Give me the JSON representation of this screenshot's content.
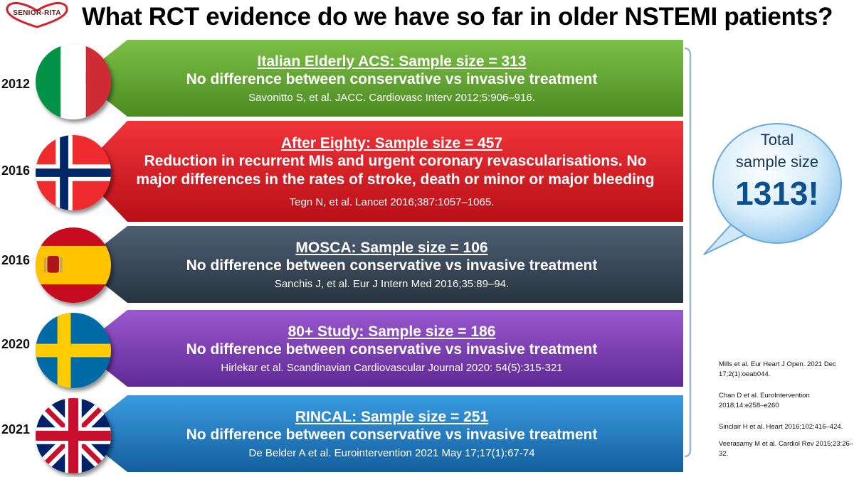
{
  "logo_text": "SENIOR-RITA",
  "title": "What RCT evidence do we have so far in older NSTEMI patients?",
  "studies": [
    {
      "year": "2012",
      "country": "Italy",
      "color": "#5a9a2e",
      "title": "Italian Elderly ACS: Sample size = 313",
      "body": "No difference between conservative vs invasive treatment",
      "cite": "Savonitto S, et al. JACC. Cardiovasc Interv 2012;5:906–916."
    },
    {
      "year": "2016",
      "country": "Norway",
      "color": "#d71920",
      "title": "After Eighty: Sample size = 457",
      "body": "Reduction in recurrent MIs and urgent coronary revascularisations. No major differences in the rates of stroke, death or minor or major bleeding",
      "cite": "Tegn N, et al. Lancet 2016;387:1057–1065."
    },
    {
      "year": "2016",
      "country": "Spain",
      "color": "#37475a",
      "title": "MOSCA: Sample size = 106",
      "body": "No difference between conservative vs invasive treatment",
      "cite": "Sanchis J, et al. Eur J Intern Med 2016;35:89–94."
    },
    {
      "year": "2020",
      "country": "Sweden",
      "color": "#7b3fb0",
      "title": "80+ Study: Sample size = 186",
      "body": "No difference between conservative vs invasive treatment",
      "cite": "Hirlekar et al. Scandinavian Cardiovascular Journal 2020: 54(5):315-321"
    },
    {
      "year": "2021",
      "country": "United Kingdom",
      "color": "#1d7bc4",
      "title": "RINCAL: Sample size = 251",
      "body": "No difference between conservative vs invasive treatment",
      "cite": "De Belder A et al. Eurointervention 2021 May 17;17(1):67-74"
    }
  ],
  "bubble": {
    "line1": "Total",
    "line2": "sample size",
    "number": "1313!"
  },
  "references": [
    "Mills et al. Eur Heart J Open. 2021 Dec 17;2(1):oeab044.",
    "Chan D et al. EuroIntervention 2018;14:e258–e260",
    "Sinclair H et al. Heart 2016;102:416–424.",
    "Veerasamy M et al. Cardiol Rev 2015;23:26–32."
  ]
}
